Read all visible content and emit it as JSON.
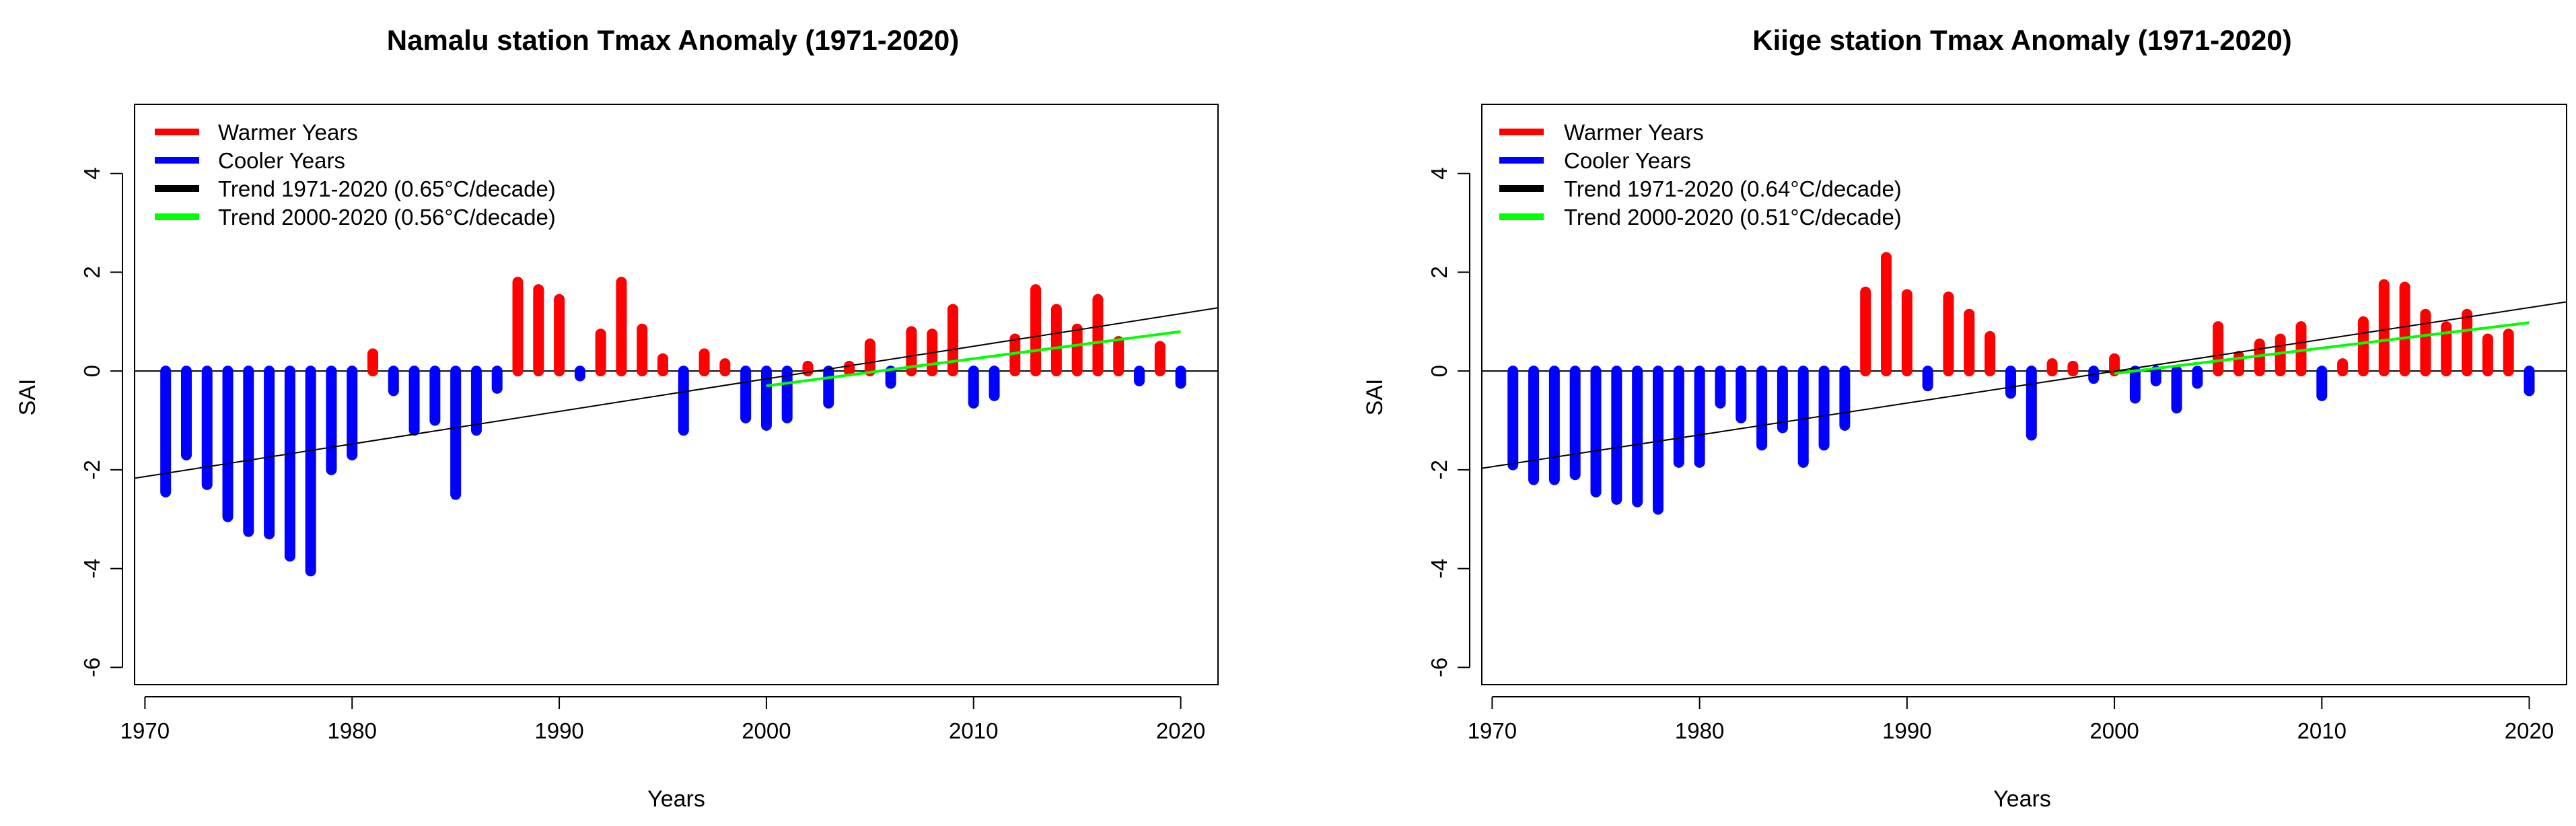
{
  "chart_data": [
    {
      "type": "bar",
      "title": "Namalu station Tmax Anomaly (1971-2020)",
      "xlabel": "Years",
      "ylabel": "SAI",
      "xlim": [
        1969.5,
        2021.8
      ],
      "ylim": [
        -6.35,
        5.4
      ],
      "xticks": [
        1970,
        1980,
        1990,
        2000,
        2010,
        2020
      ],
      "yticks": [
        -6,
        -4,
        -2,
        0,
        2,
        4
      ],
      "legend_position": "top-left",
      "legend": [
        {
          "label": "Warmer Years",
          "color": "#ff0000"
        },
        {
          "label": "Cooler Years",
          "color": "#0000ff"
        },
        {
          "label": "Trend 1971-2020 (0.65°C/decade)",
          "color": "#000000"
        },
        {
          "label": "Trend 2000-2020 (0.56°C/decade)",
          "color": "#00ff00"
        }
      ],
      "years": [
        1971,
        1972,
        1973,
        1974,
        1975,
        1976,
        1977,
        1978,
        1979,
        1980,
        1981,
        1982,
        1983,
        1984,
        1985,
        1986,
        1987,
        1988,
        1989,
        1990,
        1991,
        1992,
        1993,
        1994,
        1995,
        1996,
        1997,
        1998,
        1999,
        2000,
        2001,
        2002,
        2003,
        2004,
        2005,
        2006,
        2007,
        2008,
        2009,
        2010,
        2011,
        2012,
        2013,
        2014,
        2015,
        2016,
        2017,
        2018,
        2019,
        2020
      ],
      "values": [
        -2.45,
        -1.7,
        -2.3,
        -2.95,
        -3.25,
        -3.3,
        -3.75,
        -4.05,
        -2.0,
        -1.7,
        0.35,
        -0.4,
        -1.2,
        -1.0,
        -2.5,
        -1.2,
        -0.35,
        1.8,
        1.65,
        1.45,
        -0.1,
        0.75,
        1.8,
        0.85,
        0.25,
        -1.2,
        0.35,
        0.15,
        -0.95,
        -1.1,
        -0.95,
        0.1,
        -0.65,
        0.1,
        0.55,
        -0.25,
        0.8,
        0.75,
        1.25,
        -0.65,
        -0.5,
        0.65,
        1.65,
        1.25,
        0.85,
        1.45,
        0.6,
        -0.2,
        0.5,
        -0.25
      ],
      "trend_full": {
        "start_year": 1969.5,
        "start_value": -2.17,
        "end_year": 2021.8,
        "end_value": 1.28
      },
      "trend_recent": {
        "start_year": 2000,
        "start_value": -0.3,
        "end_year": 2020,
        "end_value": 0.8
      }
    },
    {
      "type": "bar",
      "title": "Kiige station Tmax Anomaly (1971-2020)",
      "xlabel": "Years",
      "ylabel": "SAI",
      "xlim": [
        1969.5,
        2021.8
      ],
      "ylim": [
        -6.35,
        5.4
      ],
      "xticks": [
        1970,
        1980,
        1990,
        2000,
        2010,
        2020
      ],
      "yticks": [
        -6,
        -4,
        -2,
        0,
        2,
        4
      ],
      "legend_position": "top-left",
      "legend": [
        {
          "label": "Warmer Years",
          "color": "#ff0000"
        },
        {
          "label": "Cooler Years",
          "color": "#0000ff"
        },
        {
          "label": "Trend 1971-2020 (0.64°C/decade)",
          "color": "#000000"
        },
        {
          "label": "Trend 2000-2020 (0.51°C/decade)",
          "color": "#00ff00"
        }
      ],
      "years": [
        1971,
        1972,
        1973,
        1974,
        1975,
        1976,
        1977,
        1978,
        1979,
        1980,
        1981,
        1982,
        1983,
        1984,
        1985,
        1986,
        1987,
        1988,
        1989,
        1990,
        1991,
        1992,
        1993,
        1994,
        1995,
        1996,
        1997,
        1998,
        1999,
        2000,
        2001,
        2002,
        2003,
        2004,
        2005,
        2006,
        2007,
        2008,
        2009,
        2010,
        2011,
        2012,
        2013,
        2014,
        2015,
        2016,
        2017,
        2018,
        2019,
        2020
      ],
      "values": [
        -1.9,
        -2.2,
        -2.2,
        -2.1,
        -2.45,
        -2.6,
        -2.65,
        -2.8,
        -1.85,
        -1.85,
        -0.65,
        -0.95,
        -1.5,
        -1.15,
        -1.85,
        -1.5,
        -1.1,
        1.6,
        2.3,
        1.55,
        -0.3,
        1.5,
        1.15,
        0.7,
        -0.45,
        -1.3,
        0.15,
        0.1,
        -0.15,
        0.25,
        -0.55,
        -0.2,
        -0.75,
        -0.25,
        0.9,
        0.3,
        0.55,
        0.65,
        0.9,
        -0.5,
        0.15,
        1.0,
        1.75,
        1.7,
        1.15,
        0.9,
        1.15,
        0.65,
        0.75,
        -0.4
      ],
      "trend_full": {
        "start_year": 1969.5,
        "start_value": -1.97,
        "end_year": 2021.8,
        "end_value": 1.4
      },
      "trend_recent": {
        "start_year": 2000,
        "start_value": -0.05,
        "end_year": 2020,
        "end_value": 0.98
      }
    }
  ]
}
